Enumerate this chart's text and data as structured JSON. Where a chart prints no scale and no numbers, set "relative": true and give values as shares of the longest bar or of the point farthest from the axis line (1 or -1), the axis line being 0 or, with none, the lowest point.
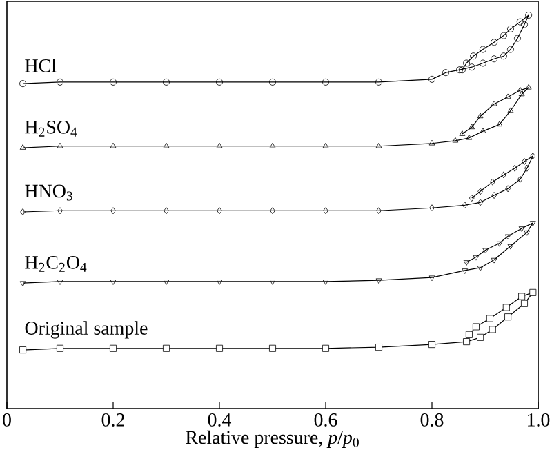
{
  "chart_data": {
    "type": "line",
    "relative": true,
    "xlabel": "Relative pressure, *p*/*p*$_{0}$",
    "xlim": [
      0,
      1
    ],
    "xticks": [
      0,
      0.2,
      0.4,
      0.6,
      0.8,
      {
        "value": 1,
        "label": "1.0"
      }
    ],
    "series": [
      {
        "name": "HCl",
        "color": "#000000",
        "marker": "circle",
        "x": [
          0.03,
          0.1,
          0.2,
          0.3,
          0.4,
          0.5,
          0.6,
          0.7,
          0.8,
          0.826,
          0.852,
          0.875,
          0.896,
          0.917,
          0.935,
          0.948,
          0.961,
          0.974,
          0.982,
          0.966,
          0.948,
          0.935,
          0.917,
          0.896,
          0.878,
          0.865,
          0.857
        ],
        "values": [
          0.826,
          0.83,
          0.83,
          0.83,
          0.83,
          0.83,
          0.83,
          0.83,
          0.837,
          0.854,
          0.861,
          0.868,
          0.878,
          0.889,
          0.896,
          0.913,
          0.941,
          0.976,
          1.0,
          0.983,
          0.965,
          0.948,
          0.931,
          0.913,
          0.896,
          0.878,
          0.861
        ]
      },
      {
        "name": "H$_{2}$SO$_{4}$",
        "color": "#000000",
        "marker": "triangle",
        "x": [
          0.03,
          0.1,
          0.2,
          0.3,
          0.4,
          0.5,
          0.6,
          0.7,
          0.8,
          0.844,
          0.87,
          0.896,
          0.927,
          0.948,
          0.969,
          0.982,
          0.966,
          0.943,
          0.917,
          0.891,
          0.875,
          0.857
        ],
        "values": [
          0.663,
          0.667,
          0.667,
          0.667,
          0.667,
          0.667,
          0.667,
          0.667,
          0.674,
          0.681,
          0.688,
          0.705,
          0.722,
          0.757,
          0.799,
          0.816,
          0.809,
          0.792,
          0.774,
          0.743,
          0.715,
          0.698
        ]
      },
      {
        "name": "HNO$_{3}$",
        "color": "#000000",
        "marker": "diamond",
        "x": [
          0.03,
          0.1,
          0.2,
          0.3,
          0.4,
          0.5,
          0.6,
          0.7,
          0.8,
          0.862,
          0.891,
          0.917,
          0.943,
          0.966,
          0.979,
          0.99,
          0.974,
          0.956,
          0.935,
          0.914,
          0.891,
          0.875
        ],
        "values": [
          0.5,
          0.503,
          0.503,
          0.503,
          0.503,
          0.503,
          0.503,
          0.503,
          0.51,
          0.517,
          0.524,
          0.542,
          0.559,
          0.583,
          0.611,
          0.642,
          0.628,
          0.611,
          0.594,
          0.576,
          0.552,
          0.535
        ]
      },
      {
        "name": "H$_{2}$C$_{2}$O$_{4}$",
        "color": "#000000",
        "marker": "triangle down",
        "x": [
          0.03,
          0.1,
          0.2,
          0.3,
          0.4,
          0.5,
          0.6,
          0.7,
          0.8,
          0.862,
          0.891,
          0.917,
          0.948,
          0.979,
          0.99,
          0.969,
          0.943,
          0.927,
          0.901,
          0.883,
          0.865
        ],
        "values": [
          0.319,
          0.323,
          0.323,
          0.323,
          0.323,
          0.323,
          0.323,
          0.326,
          0.333,
          0.351,
          0.358,
          0.378,
          0.413,
          0.448,
          0.472,
          0.458,
          0.438,
          0.42,
          0.403,
          0.385,
          0.372
        ]
      },
      {
        "name": "Original sample",
        "color": "#000000",
        "marker": "square",
        "x": [
          0.03,
          0.1,
          0.2,
          0.3,
          0.4,
          0.5,
          0.6,
          0.7,
          0.8,
          0.865,
          0.891,
          0.914,
          0.943,
          0.974,
          0.99,
          0.969,
          0.94,
          0.909,
          0.883,
          0.87
        ],
        "values": [
          0.149,
          0.153,
          0.153,
          0.153,
          0.153,
          0.153,
          0.153,
          0.156,
          0.163,
          0.17,
          0.181,
          0.201,
          0.233,
          0.267,
          0.295,
          0.285,
          0.257,
          0.229,
          0.208,
          0.188
        ]
      }
    ]
  }
}
